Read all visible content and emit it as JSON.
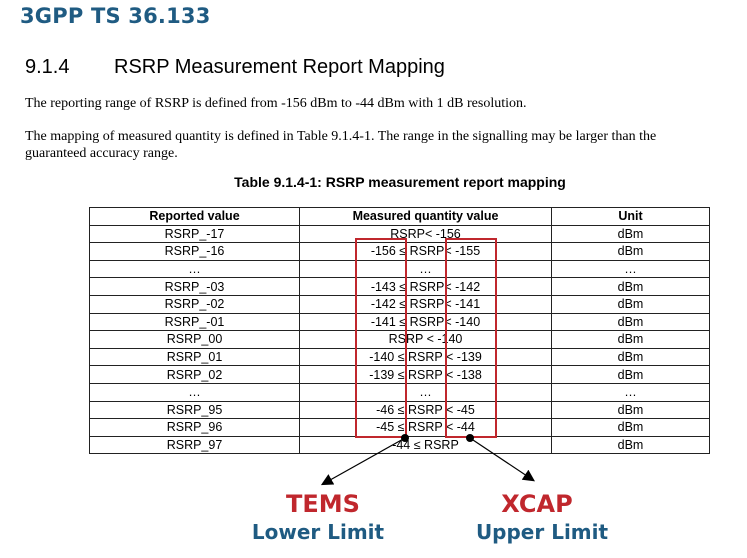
{
  "header": {
    "title": "3GPP TS 36.133"
  },
  "section": {
    "number": "9.1.4",
    "title": "RSRP Measurement Report Mapping"
  },
  "paragraphs": {
    "p1": "The reporting range of RSRP is defined from -156 dBm to -44 dBm with 1 dB resolution.",
    "p2_line1": "The mapping of measured quantity is defined in Table 9.1.4-1. The range in the signalling may be larger than the",
    "p2_line2": "guaranteed accuracy range."
  },
  "table": {
    "caption": "Table 9.1.4-1: RSRP measurement report mapping",
    "headers": [
      "Reported value",
      "Measured quantity value",
      "Unit"
    ],
    "rows": [
      [
        "RSRP_-17",
        "RSRP< -156",
        "dBm"
      ],
      [
        "RSRP_-16",
        "-156 ≤ RSRP< -155",
        "dBm"
      ],
      [
        "…",
        "…",
        "…"
      ],
      [
        "RSRP_-03",
        "-143 ≤ RSRP< -142",
        "dBm"
      ],
      [
        "RSRP_-02",
        "-142 ≤ RSRP< -141",
        "dBm"
      ],
      [
        "RSRP_-01",
        "-141 ≤ RSRP< -140",
        "dBm"
      ],
      [
        "RSRP_00",
        "RSRP < -140",
        "dBm"
      ],
      [
        "RSRP_01",
        "-140 ≤ RSRP < -139",
        "dBm"
      ],
      [
        "RSRP_02",
        "-139 ≤ RSRP < -138",
        "dBm"
      ],
      [
        "…",
        "…",
        "…"
      ],
      [
        "RSRP_95",
        "-46 ≤ RSRP < -45",
        "dBm"
      ],
      [
        "RSRP_96",
        "-45 ≤ RSRP < -44",
        "dBm"
      ],
      [
        "RSRP_97",
        "-44 ≤ RSRP",
        "dBm"
      ]
    ]
  },
  "annotations": {
    "left_tool": "TEMS",
    "left_limit": "Lower Limit",
    "right_tool": "XCAP",
    "right_limit": "Upper Limit",
    "highlight_color": "#c0272d",
    "label_color": "#1f5b82"
  }
}
